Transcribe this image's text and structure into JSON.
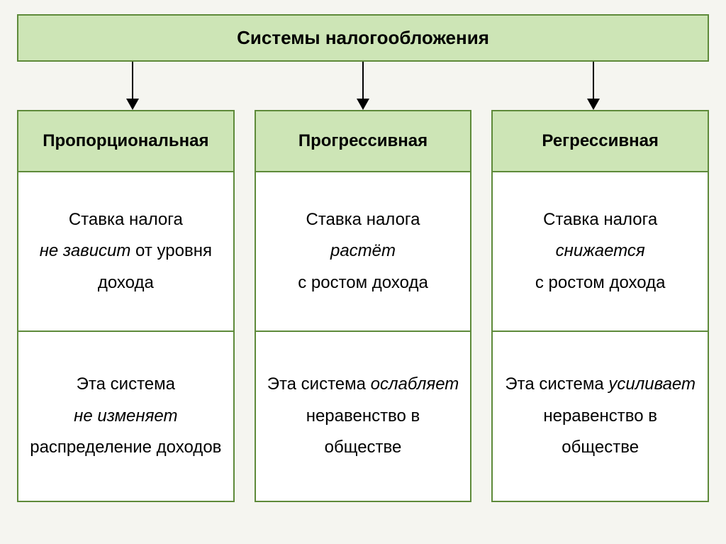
{
  "diagram": {
    "type": "tree",
    "title": "Системы налогообложения",
    "title_fontsize": 26,
    "header_bg": "#cde5b6",
    "border_color": "#5e8a3a",
    "cell_bg": "#ffffff",
    "text_color": "#000000",
    "body_fontsize": 24,
    "header_fontsize": 24,
    "columns": [
      {
        "header": "Пропорциональная",
        "cell1_pre": "Ставка налога",
        "cell1_em": "не зависит",
        "cell1_post": " от уровня дохода",
        "cell2_pre": "Эта система",
        "cell2_em": "не изменяет",
        "cell2_post": "распределение доходов"
      },
      {
        "header": "Прогрессивная",
        "cell1_pre": "Ставка налога",
        "cell1_em": "растёт",
        "cell1_post": "с ростом дохода",
        "cell2_pre": "Эта система ",
        "cell2_em": "ослабляет",
        "cell2_post": "неравенство в обществе"
      },
      {
        "header": "Регрессивная",
        "cell1_pre": "Ставка налога ",
        "cell1_em": "снижается",
        "cell1_post": "с ростом дохода",
        "cell2_pre": "Эта система ",
        "cell2_em": "усиливает",
        "cell2_post": "неравенство в обществе"
      }
    ]
  }
}
